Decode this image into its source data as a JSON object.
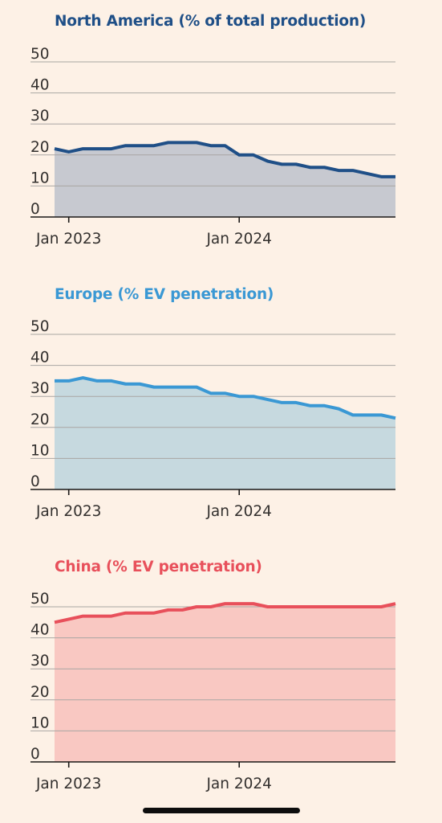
{
  "chart_data": [
    {
      "type": "area",
      "title": "North America (% of total production)",
      "color": "#1f4f87",
      "fill": "#c7c9d0",
      "ylim": [
        0,
        50
      ],
      "yticks": [
        0,
        10,
        20,
        30,
        40,
        50
      ],
      "xticks": [
        {
          "label": "Jan 2023",
          "x": 1
        },
        {
          "label": "Jan 2024",
          "x": 13
        }
      ],
      "grid": true,
      "series": [
        {
          "x": [
            0,
            1,
            2,
            3,
            4,
            5,
            6,
            7,
            8,
            9,
            10,
            11,
            12,
            13,
            14,
            15,
            16,
            17,
            18,
            19,
            20,
            21,
            22,
            23,
            24
          ],
          "values": [
            22,
            21,
            22,
            22,
            22,
            23,
            23,
            23,
            24,
            24,
            24,
            23,
            23,
            20,
            20,
            18,
            17,
            17,
            16,
            16,
            15,
            15,
            14,
            13,
            13
          ]
        }
      ]
    },
    {
      "type": "area",
      "title": "Europe (% EV penetration)",
      "color": "#3a98d4",
      "fill": "#c6d9df",
      "ylim": [
        0,
        50
      ],
      "yticks": [
        0,
        10,
        20,
        30,
        40,
        50
      ],
      "xticks": [
        {
          "label": "Jan 2023",
          "x": 1
        },
        {
          "label": "Jan 2024",
          "x": 13
        }
      ],
      "grid": true,
      "series": [
        {
          "x": [
            0,
            1,
            2,
            3,
            4,
            5,
            6,
            7,
            8,
            9,
            10,
            11,
            12,
            13,
            14,
            15,
            16,
            17,
            18,
            19,
            20,
            21,
            22,
            23,
            24
          ],
          "values": [
            35,
            35,
            36,
            35,
            35,
            34,
            34,
            33,
            33,
            33,
            33,
            31,
            31,
            30,
            30,
            29,
            28,
            28,
            27,
            27,
            26,
            24,
            24,
            24,
            23
          ]
        }
      ]
    },
    {
      "type": "area",
      "title": "China (% EV penetration)",
      "color": "#e8505b",
      "fill": "#f9c8c2",
      "ylim": [
        0,
        50
      ],
      "yticks": [
        0,
        10,
        20,
        30,
        40,
        50
      ],
      "xticks": [
        {
          "label": "Jan 2023",
          "x": 1
        },
        {
          "label": "Jan 2024",
          "x": 13
        }
      ],
      "grid": true,
      "series": [
        {
          "x": [
            0,
            1,
            2,
            3,
            4,
            5,
            6,
            7,
            8,
            9,
            10,
            11,
            12,
            13,
            14,
            15,
            16,
            17,
            18,
            19,
            20,
            21,
            22,
            23,
            24
          ],
          "values": [
            45,
            46,
            47,
            47,
            47,
            48,
            48,
            48,
            49,
            49,
            50,
            50,
            51,
            51,
            51,
            50,
            50,
            50,
            50,
            50,
            50,
            50,
            50,
            50,
            51
          ]
        }
      ]
    }
  ]
}
